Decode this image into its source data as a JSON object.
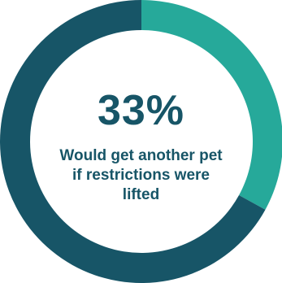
{
  "chart_data": {
    "type": "pie",
    "title": "",
    "center_value": "33%",
    "center_caption": "Would get another pet if restrictions were lifted",
    "slices": [
      {
        "value": 33,
        "color": "#26A99A"
      },
      {
        "value": 67,
        "color": "#175567"
      }
    ],
    "text_color": "#175567"
  }
}
